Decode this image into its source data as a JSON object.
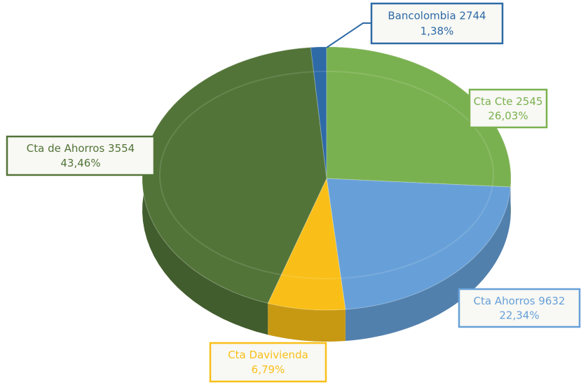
{
  "chart_data": {
    "type": "pie",
    "categories": [
      "Bancolombia 2744",
      "Cta Cte 2545",
      "Cta Ahorros 9632",
      "Cta Davivienda",
      "Cta de Ahorros 3554"
    ],
    "values": [
      1.38,
      26.03,
      22.34,
      6.79,
      43.46
    ],
    "value_labels": [
      "1,38%",
      "26,03%",
      "22,34%",
      "6,79%",
      "43,46%"
    ],
    "colors": [
      "#2e6aa6",
      "#7ab150",
      "#67a0d8",
      "#f9bf18",
      "#527438"
    ]
  }
}
